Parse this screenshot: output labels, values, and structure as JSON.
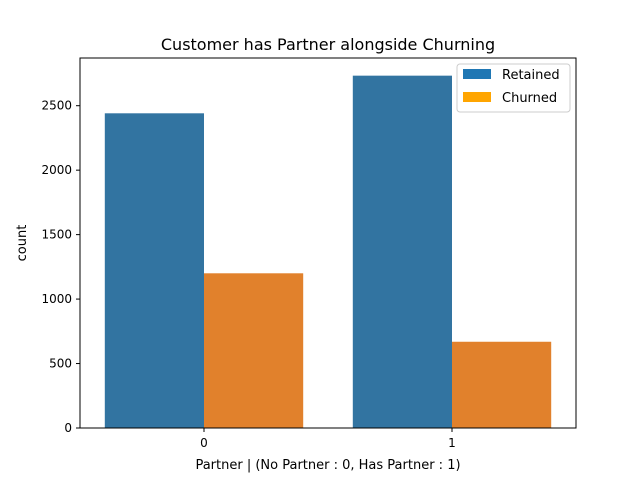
{
  "chart_data": {
    "type": "bar",
    "title": "Customer has Partner alongside Churning",
    "xlabel": "Partner | (No Partner : 0, Has Partner : 1)",
    "ylabel": "count",
    "categories": [
      "0",
      "1"
    ],
    "series": [
      {
        "name": "Retained",
        "values": [
          2441,
          2733
        ],
        "color": "#3274a1"
      },
      {
        "name": "Churned",
        "values": [
          1200,
          669
        ],
        "color": "#e1812c"
      }
    ],
    "legend_colors": [
      "#1f77b4",
      "#ffa500"
    ],
    "ylim": [
      0,
      2870
    ],
    "yticks": [
      0,
      500,
      1000,
      1500,
      2000,
      2500
    ],
    "grid": false,
    "legend": "top-right"
  }
}
